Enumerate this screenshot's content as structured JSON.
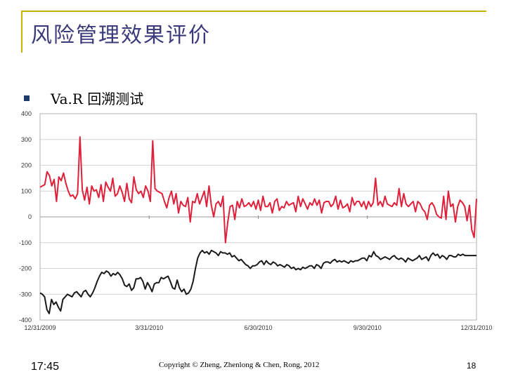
{
  "slide": {
    "title": "风险管理效果评价",
    "heading": "Va.R 回溯测试",
    "footer_time": "17:45",
    "footer_copyright": "Copyright © Zheng, Zhenlong & Chen, Rong, 2012",
    "page_number": "18"
  },
  "colors": {
    "title": "#3a3a7a",
    "accent_frame": "#c8b400",
    "bullet": "#1f3b6b",
    "series_red": "#e0203a",
    "series_black": "#1a1a1a"
  },
  "chart_data": {
    "type": "line",
    "ylim": [
      -400,
      400
    ],
    "yticks": [
      "400",
      "300",
      "200",
      "100",
      "0",
      "-100",
      "-200",
      "-300",
      "-400"
    ],
    "xlabels": [
      "12/31/2009",
      "3/31/2010",
      "6/30/2010",
      "9/30/2010",
      "12/31/2010"
    ],
    "grid": true,
    "series": [
      {
        "color": "#e0203a",
        "values": [
          115,
          120,
          125,
          175,
          160,
          120,
          145,
          60,
          155,
          140,
          170,
          130,
          100,
          80,
          85,
          70,
          90,
          310,
          105,
          65,
          115,
          50,
          120,
          100,
          105,
          75,
          125,
          60,
          135,
          115,
          100,
          150,
          80,
          90,
          120,
          95,
          60,
          130,
          70,
          55,
          155,
          105,
          90,
          100,
          75,
          120,
          100,
          60,
          295,
          110,
          100,
          95,
          90,
          60,
          35,
          75,
          100,
          50,
          90,
          15,
          60,
          45,
          40,
          75,
          -20,
          60,
          55,
          90,
          50,
          75,
          100,
          40,
          120,
          45,
          0,
          50,
          60,
          40,
          80,
          -100,
          -20,
          40,
          45,
          -10,
          60,
          35,
          70,
          40,
          45,
          55,
          40,
          60,
          30,
          65,
          25,
          80,
          40,
          40,
          55,
          15,
          60,
          70,
          25,
          40,
          35,
          60,
          45,
          50,
          55,
          20,
          80,
          40,
          70,
          50,
          30,
          55,
          45,
          70,
          45,
          65,
          15,
          55,
          60,
          60,
          40,
          50,
          80,
          30,
          65,
          35,
          40,
          50,
          20,
          75,
          45,
          60,
          60,
          40,
          60,
          30,
          60,
          40,
          55,
          150,
          45,
          60,
          40,
          80,
          50,
          45,
          40,
          55,
          45,
          110,
          40,
          90,
          50,
          40,
          50,
          60,
          20,
          60,
          50,
          30,
          20,
          -10,
          45,
          55,
          40,
          10,
          0,
          -5,
          80,
          -10,
          100,
          40,
          50,
          -20,
          40,
          65,
          55,
          40,
          -15,
          45,
          -50,
          -80,
          70
        ]
      },
      {
        "color": "#1a1a1a",
        "values": [
          -295,
          -300,
          -310,
          -360,
          -375,
          -320,
          -340,
          -330,
          -350,
          -365,
          -320,
          -310,
          -300,
          -305,
          -310,
          -295,
          -290,
          -300,
          -310,
          -290,
          -285,
          -300,
          -310,
          -295,
          -275,
          -250,
          -230,
          -215,
          -220,
          -210,
          -215,
          -230,
          -220,
          -225,
          -215,
          -225,
          -240,
          -265,
          -270,
          -260,
          -285,
          -275,
          -240,
          -240,
          -235,
          -250,
          -280,
          -255,
          -270,
          -290,
          -260,
          -255,
          -255,
          -235,
          -240,
          -235,
          -230,
          -250,
          -275,
          -280,
          -245,
          -275,
          -290,
          -280,
          -300,
          -295,
          -280,
          -250,
          -200,
          -160,
          -140,
          -130,
          -140,
          -135,
          -145,
          -130,
          -135,
          -140,
          -150,
          -135,
          -140,
          -140,
          -145,
          -140,
          -155,
          -150,
          -160,
          -170,
          -165,
          -175,
          -185,
          -190,
          -200,
          -190,
          -190,
          -185,
          -175,
          -170,
          -185,
          -170,
          -180,
          -185,
          -175,
          -180,
          -190,
          -185,
          -190,
          -195,
          -185,
          -190,
          -200,
          -195,
          -205,
          -200,
          -205,
          -195,
          -200,
          -195,
          -190,
          -190,
          -200,
          -185,
          -190,
          -200,
          -180,
          -175,
          -175,
          -180,
          -170,
          -165,
          -175,
          -170,
          -175,
          -170,
          -175,
          -180,
          -170,
          -175,
          -170,
          -170,
          -165,
          -160,
          -160,
          -170,
          -150,
          -155,
          -135,
          -150,
          -155,
          -165,
          -160,
          -155,
          -160,
          -165,
          -155,
          -150,
          -160,
          -165,
          -160,
          -165,
          -175,
          -160,
          -165,
          -170,
          -165,
          -160,
          -150,
          -165,
          -160,
          -155,
          -170,
          -150,
          -140,
          -150,
          -145,
          -160,
          -150,
          -155,
          -165,
          -150,
          -150,
          -155,
          -155,
          -145,
          -150,
          -145,
          -150,
          -150,
          -150,
          -150,
          -150,
          -150
        ]
      }
    ]
  }
}
